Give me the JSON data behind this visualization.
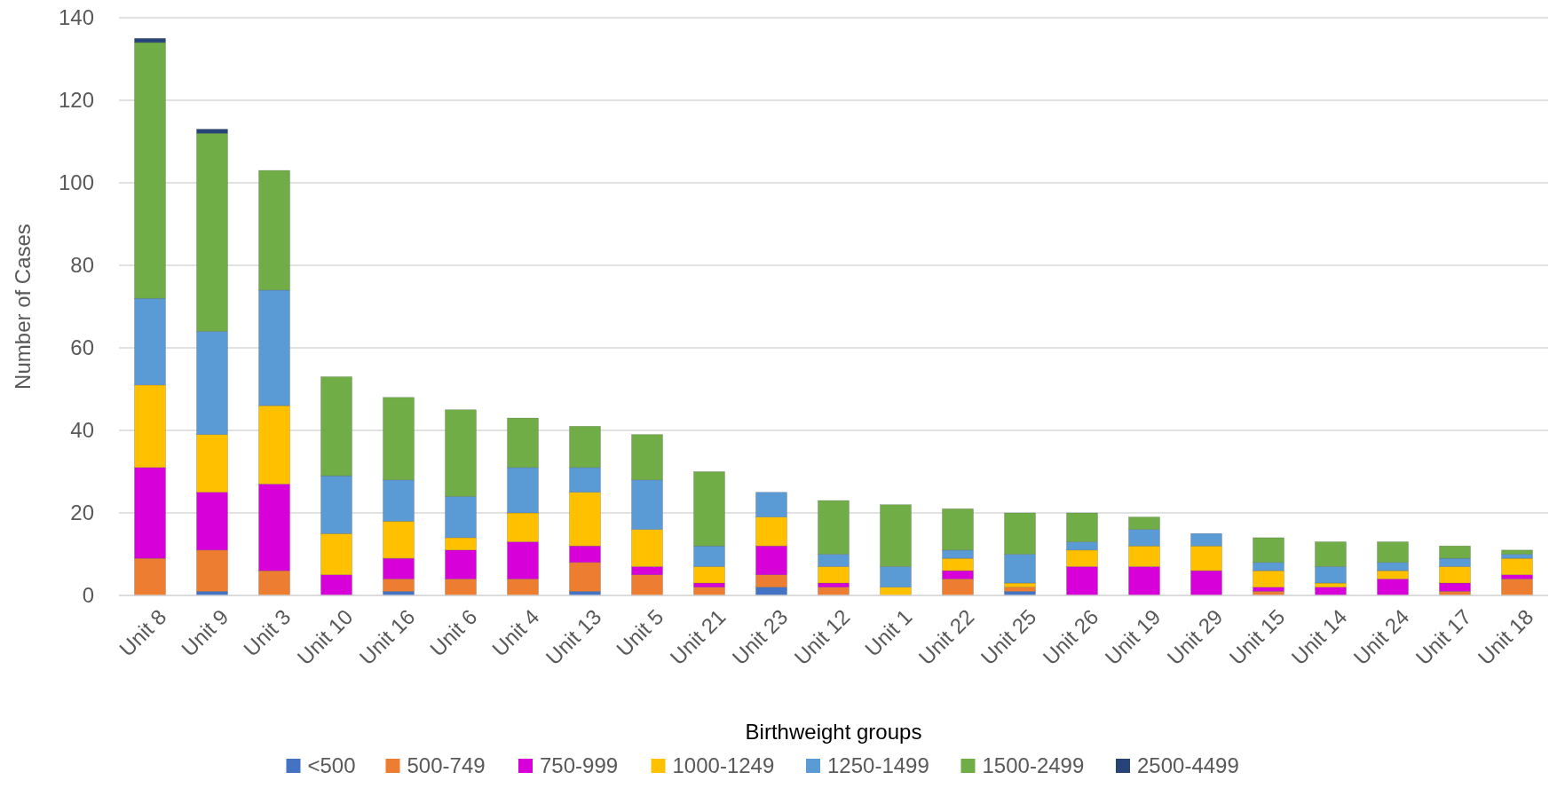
{
  "chart_data": {
    "type": "bar",
    "stacked": true,
    "xlabel": "Birthweight groups",
    "ylabel": "Number of Cases",
    "categories": [
      "Unit 8",
      "Unit 9",
      "Unit 3",
      "Unit 10",
      "Unit 16",
      "Unit 6",
      "Unit 4",
      "Unit 13",
      "Unit 5",
      "Unit 21",
      "Unit 23",
      "Unit 12",
      "Unit 1",
      "Unit 22",
      "Unit 25",
      "Unit 26",
      "Unit 19",
      "Unit 29",
      "Unit 15",
      "Unit 14",
      "Unit 24",
      "Unit 17",
      "Unit 18"
    ],
    "series": [
      {
        "name": "<500",
        "color": "#4472c4",
        "values": [
          0,
          1,
          0,
          0,
          1,
          0,
          0,
          1,
          0,
          0,
          2,
          0,
          0,
          0,
          1,
          0,
          0,
          0,
          0,
          0,
          0,
          0,
          0
        ]
      },
      {
        "name": "500-749",
        "color": "#ed7d31",
        "values": [
          9,
          10,
          6,
          0,
          3,
          4,
          4,
          7,
          5,
          2,
          3,
          2,
          0,
          4,
          1,
          0,
          0,
          0,
          1,
          0,
          0,
          1,
          4
        ]
      },
      {
        "name": "750-999",
        "color": "#d800d8",
        "values": [
          22,
          14,
          21,
          5,
          5,
          7,
          9,
          4,
          2,
          1,
          7,
          1,
          0,
          2,
          0,
          7,
          7,
          6,
          1,
          2,
          4,
          2,
          1
        ]
      },
      {
        "name": "1000-1249",
        "color": "#ffc000",
        "values": [
          20,
          14,
          19,
          10,
          9,
          3,
          7,
          13,
          9,
          4,
          7,
          4,
          2,
          3,
          1,
          4,
          5,
          6,
          4,
          1,
          2,
          4,
          4
        ]
      },
      {
        "name": "1250-1499",
        "color": "#5b9bd5",
        "values": [
          21,
          25,
          28,
          14,
          10,
          10,
          11,
          6,
          12,
          5,
          6,
          3,
          5,
          2,
          7,
          2,
          4,
          3,
          2,
          4,
          2,
          2,
          1
        ]
      },
      {
        "name": "1500-2499",
        "color": "#70ad47",
        "values": [
          62,
          48,
          29,
          24,
          20,
          21,
          12,
          10,
          11,
          18,
          0,
          13,
          15,
          10,
          10,
          7,
          3,
          0,
          6,
          6,
          5,
          3,
          1
        ]
      },
      {
        "name": "2500-4499",
        "color": "#264478",
        "values": [
          1,
          1,
          0,
          0,
          0,
          0,
          0,
          0,
          0,
          0,
          0,
          0,
          0,
          0,
          0,
          0,
          0,
          0,
          0,
          0,
          0,
          0,
          0
        ]
      }
    ],
    "ylim": [
      0,
      140
    ],
    "yticks": [
      0,
      20,
      40,
      60,
      80,
      100,
      120,
      140
    ],
    "grid": "y",
    "legend": "bottom"
  }
}
